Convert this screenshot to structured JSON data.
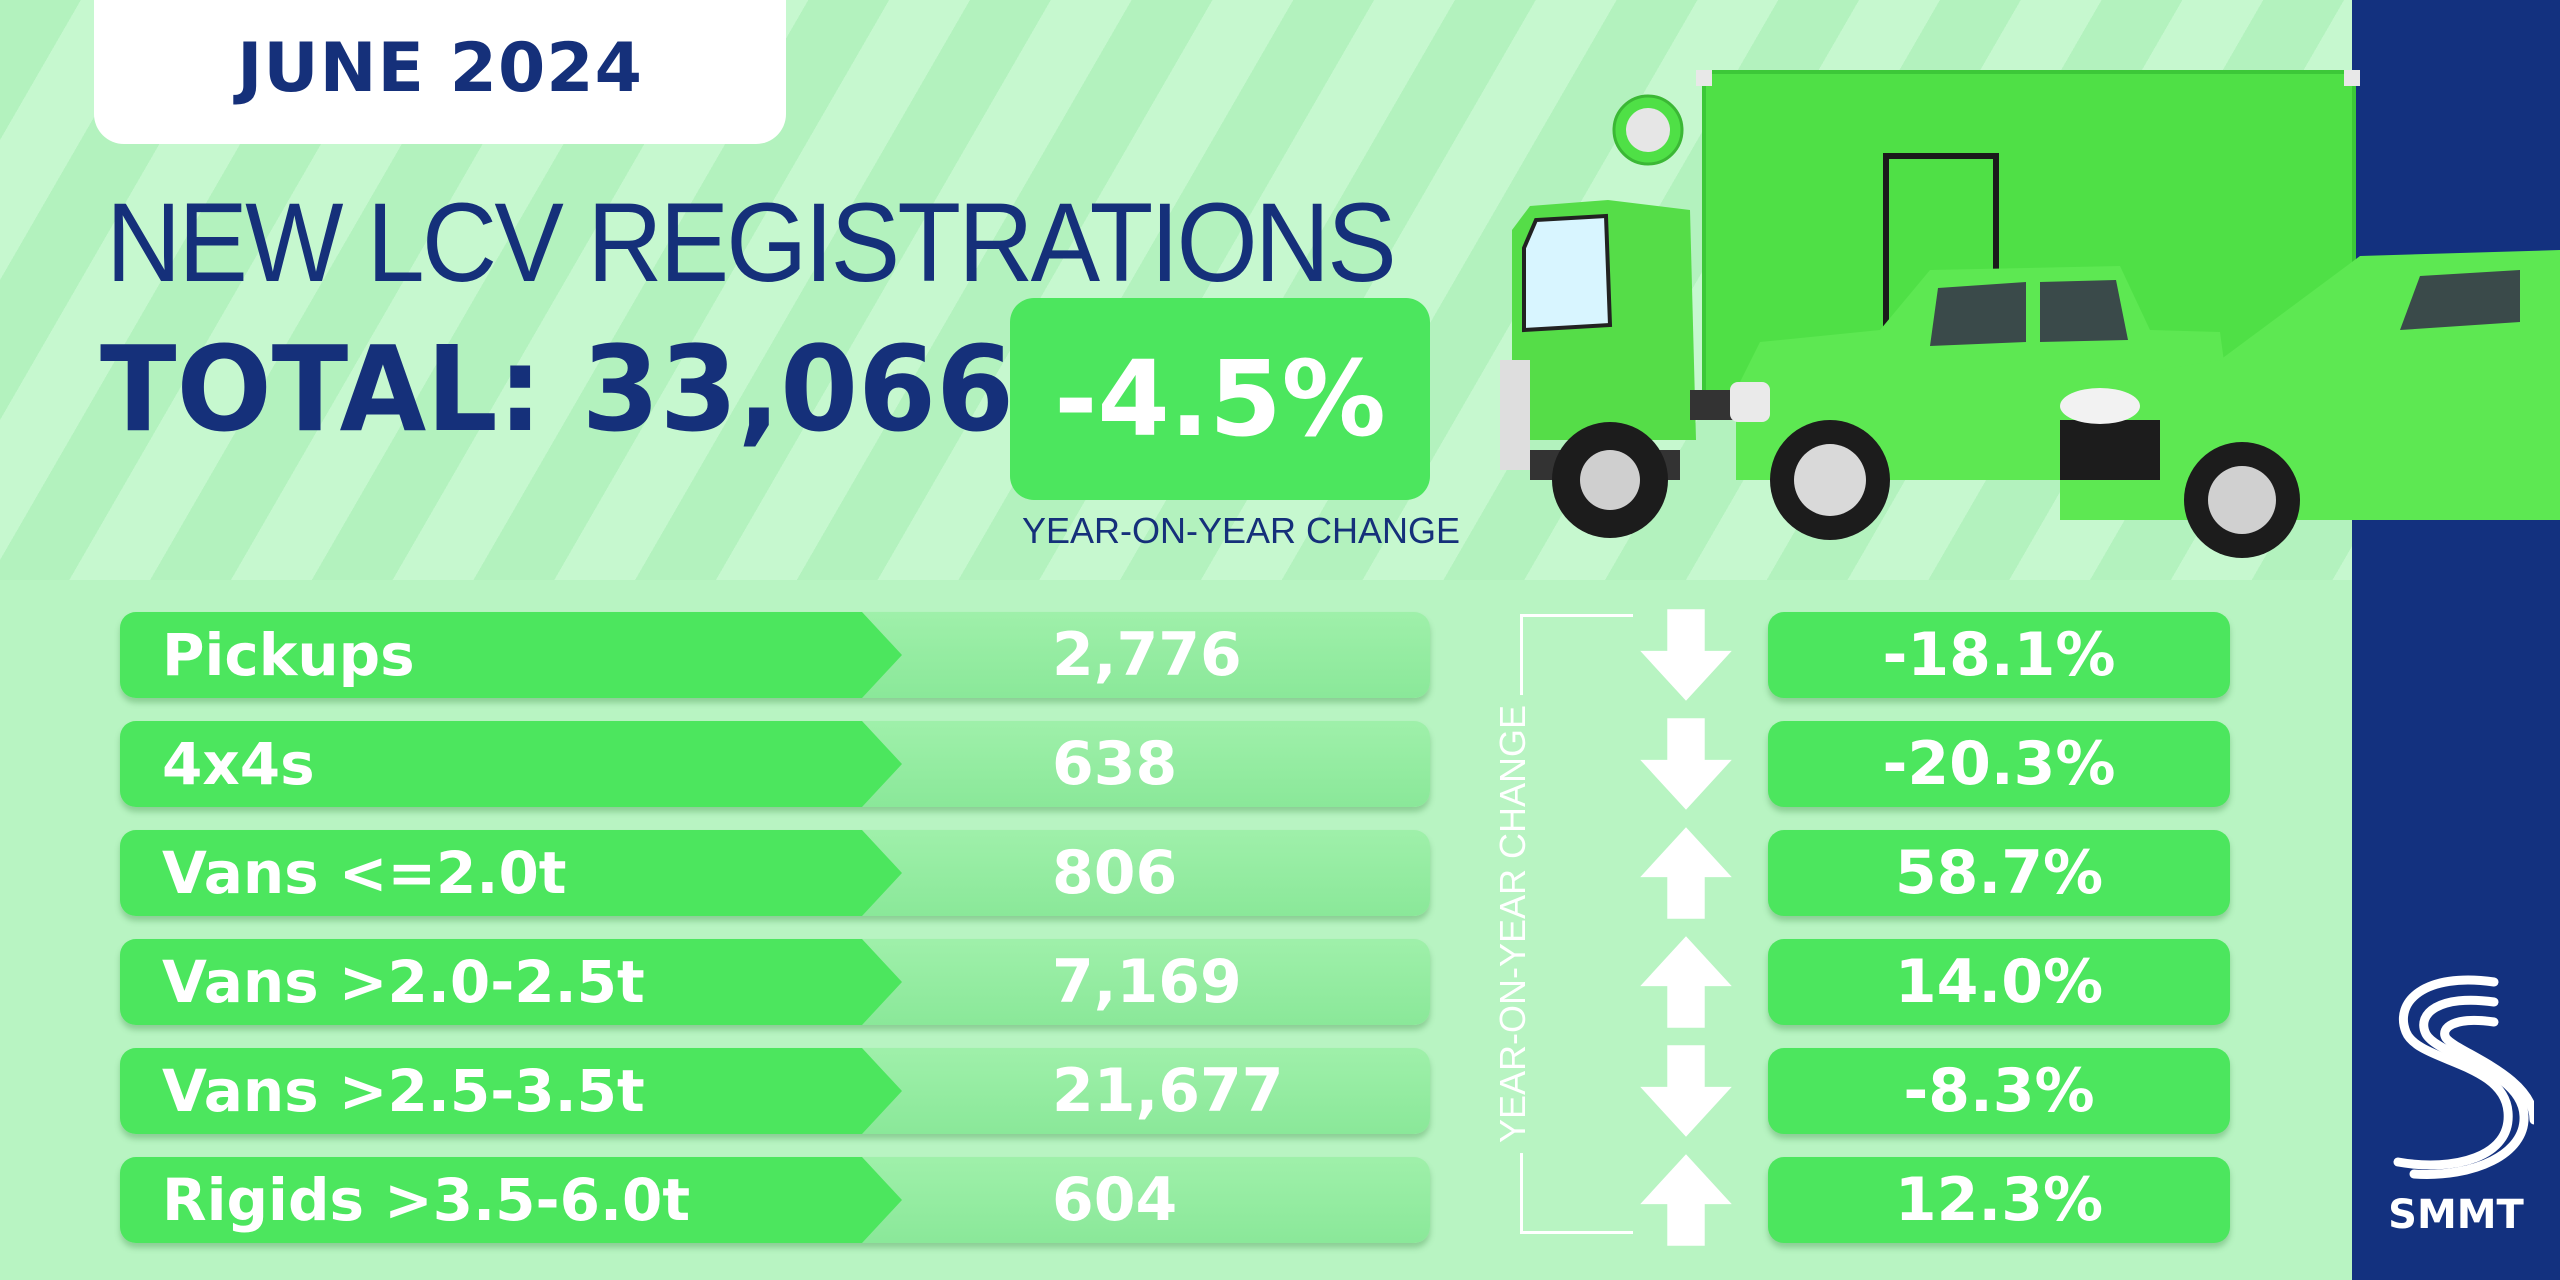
{
  "header": {
    "date": "JUNE 2024",
    "headline": "NEW LCV REGISTRATIONS",
    "total": "TOTAL: 33,066",
    "yoy_value": "-4.5%",
    "yoy_caption": "YEAR-ON-YEAR CHANGE"
  },
  "table": {
    "side_label": "YEAR-ON-YEAR CHANGE",
    "rows": [
      {
        "label": "Pickups",
        "value": "2,776",
        "change": "-18.1%",
        "direction": "down"
      },
      {
        "label": "4x4s",
        "value": "638",
        "change": "-20.3%",
        "direction": "down"
      },
      {
        "label": "Vans <=2.0t",
        "value": "806",
        "change": "58.7%",
        "direction": "up"
      },
      {
        "label": "Vans >2.0-2.5t",
        "value": "7,169",
        "change": "14.0%",
        "direction": "up"
      },
      {
        "label": "Vans >2.5-3.5t",
        "value": "21,677",
        "change": "-8.3%",
        "direction": "down"
      },
      {
        "label": "Rigids >3.5-6.0t",
        "value": "604",
        "change": "12.3%",
        "direction": "up"
      }
    ]
  },
  "brand": {
    "name": "SMMT",
    "colors": {
      "navy": "#15307a",
      "green": "#4ce65e",
      "light_green": "#b8f4c2",
      "bar": "#13317f"
    }
  },
  "icons": [
    "down-arrow-icon",
    "up-arrow-icon",
    "smmt-logo-icon",
    "truck-icon",
    "pickup-icon",
    "van-icon"
  ]
}
